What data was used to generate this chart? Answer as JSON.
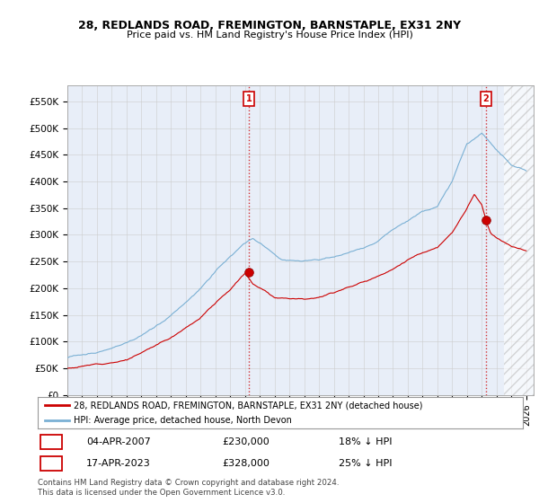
{
  "title1": "28, REDLANDS ROAD, FREMINGTON, BARNSTAPLE, EX31 2NY",
  "title2": "Price paid vs. HM Land Registry's House Price Index (HPI)",
  "ylabel_values": [
    0,
    50000,
    100000,
    150000,
    200000,
    250000,
    300000,
    350000,
    400000,
    450000,
    500000,
    550000
  ],
  "ylabel_labels": [
    "£0",
    "£50K",
    "£100K",
    "£150K",
    "£200K",
    "£250K",
    "£300K",
    "£350K",
    "£400K",
    "£450K",
    "£500K",
    "£550K"
  ],
  "ylim": [
    0,
    580000
  ],
  "xlim_start": 1995.0,
  "xlim_end": 2026.5,
  "sale1_x": 2007.25,
  "sale1_y": 230000,
  "sale2_x": 2023.29,
  "sale2_y": 328000,
  "legend_red": "28, REDLANDS ROAD, FREMINGTON, BARNSTAPLE, EX31 2NY (detached house)",
  "legend_blue": "HPI: Average price, detached house, North Devon",
  "note1_date": "04-APR-2007",
  "note1_price": "£230,000",
  "note1_hpi": "18% ↓ HPI",
  "note2_date": "17-APR-2023",
  "note2_price": "£328,000",
  "note2_hpi": "25% ↓ HPI",
  "footer": "Contains HM Land Registry data © Crown copyright and database right 2024.\nThis data is licensed under the Open Government Licence v3.0.",
  "red_color": "#cc0000",
  "blue_color": "#7ab0d4",
  "grid_color": "#cccccc",
  "bg_color": "#ffffff",
  "plot_bg": "#e8eef8"
}
